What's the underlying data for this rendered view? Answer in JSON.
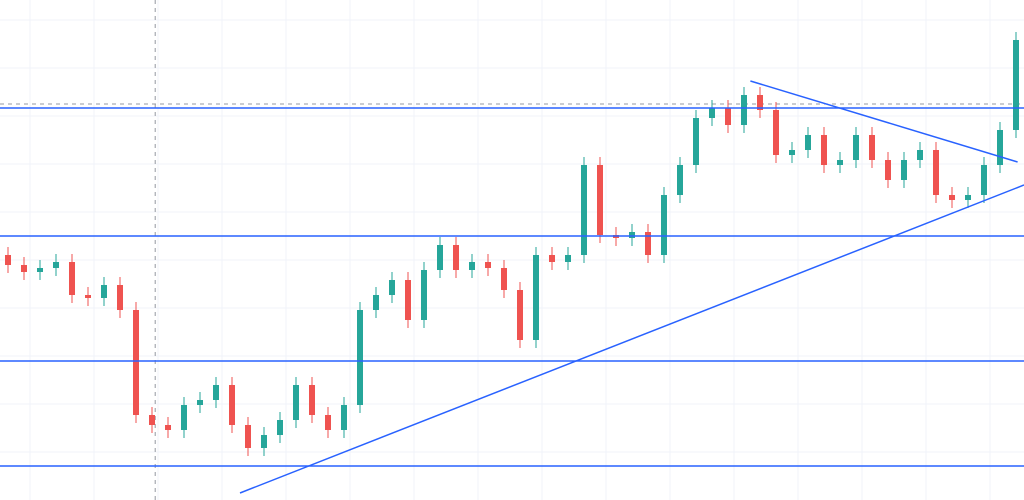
{
  "chart_data": {
    "type": "candlestick",
    "xlim": [
      -0.5,
      63.5
    ],
    "ylim": [
      0,
      500
    ],
    "grid": true,
    "up_color": "#26a69a",
    "down_color": "#ef5350",
    "line_color": "#2962ff",
    "open": [
      245,
      235,
      228,
      232,
      238,
      205,
      202,
      215,
      190,
      85,
      75,
      70,
      95,
      100,
      115,
      75,
      52,
      65,
      80,
      115,
      85,
      70,
      95,
      190,
      205,
      220,
      180,
      230,
      255,
      230,
      238,
      232,
      210,
      160,
      245,
      238,
      245,
      335,
      265,
      262,
      268,
      245,
      305,
      335,
      382,
      392,
      375,
      405,
      390,
      345,
      350,
      365,
      335,
      340,
      365,
      340,
      320,
      340,
      350,
      305,
      300,
      305,
      335,
      370
    ],
    "high": [
      253,
      243,
      240,
      246,
      246,
      213,
      223,
      223,
      198,
      93,
      83,
      103,
      108,
      123,
      123,
      83,
      73,
      88,
      123,
      123,
      93,
      103,
      198,
      213,
      228,
      228,
      238,
      263,
      263,
      246,
      246,
      240,
      218,
      253,
      253,
      253,
      343,
      343,
      273,
      276,
      276,
      313,
      343,
      390,
      400,
      400,
      413,
      413,
      398,
      358,
      373,
      373,
      348,
      373,
      373,
      348,
      348,
      358,
      358,
      313,
      313,
      343,
      378,
      468
    ],
    "low": [
      227,
      220,
      220,
      224,
      197,
      194,
      194,
      182,
      77,
      67,
      62,
      62,
      87,
      92,
      67,
      44,
      44,
      57,
      72,
      77,
      62,
      62,
      87,
      182,
      197,
      172,
      172,
      222,
      222,
      222,
      224,
      202,
      152,
      152,
      230,
      230,
      237,
      257,
      254,
      254,
      237,
      237,
      297,
      327,
      374,
      367,
      367,
      382,
      337,
      337,
      342,
      327,
      327,
      332,
      332,
      312,
      312,
      332,
      297,
      292,
      292,
      297,
      327,
      362
    ],
    "close": [
      235,
      228,
      232,
      238,
      205,
      202,
      215,
      190,
      85,
      75,
      70,
      95,
      100,
      115,
      75,
      52,
      65,
      80,
      115,
      85,
      70,
      95,
      190,
      205,
      220,
      180,
      230,
      255,
      230,
      238,
      232,
      210,
      160,
      245,
      238,
      245,
      335,
      265,
      262,
      268,
      245,
      305,
      335,
      382,
      392,
      375,
      405,
      390,
      345,
      350,
      365,
      335,
      340,
      365,
      340,
      320,
      340,
      350,
      305,
      300,
      305,
      335,
      370,
      460
    ],
    "levels": [
      392,
      264,
      139,
      34
    ],
    "trendlines": [
      {
        "x": [
          14.5,
          63.5
        ],
        "y": [
          7,
          315
        ]
      },
      {
        "x": [
          46.4,
          63.1
        ],
        "y": [
          419,
          338
        ]
      }
    ],
    "crosshair": {
      "x": 9.2,
      "y": 396
    }
  }
}
